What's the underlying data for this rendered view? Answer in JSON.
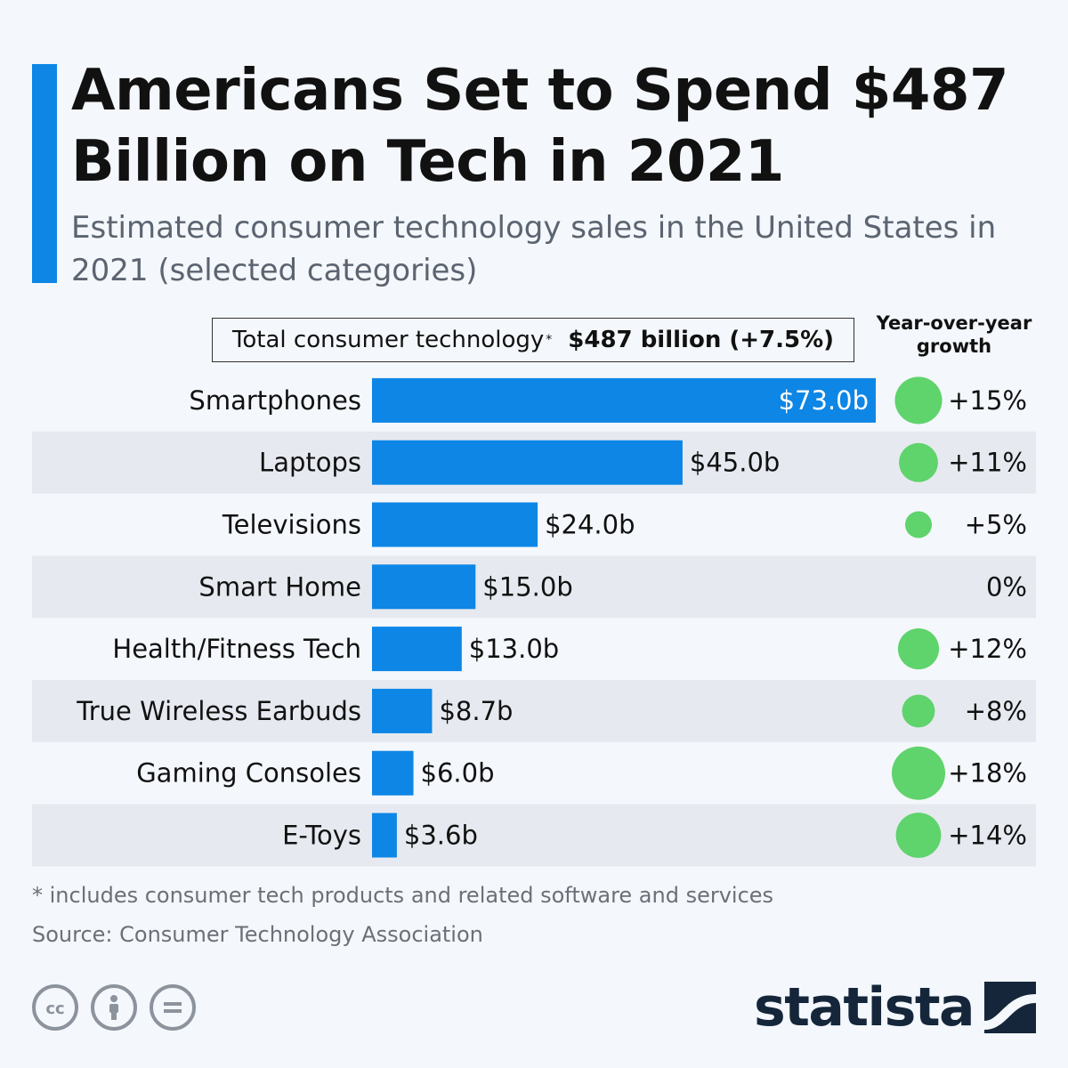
{
  "header": {
    "title": "Americans Set to Spend $487 Billion on Tech in 2021",
    "subtitle": "Estimated consumer technology sales in the United States in 2021 (selected categories)",
    "accent_color": "#0d86e6"
  },
  "total": {
    "label": "Total consumer technology",
    "marker": "*",
    "value": "$487 billion (+7.5%)"
  },
  "growth_header": "Year-over-year growth",
  "chart_data": {
    "type": "bar",
    "orientation": "horizontal",
    "title": "Americans Set to Spend $487 Billion on Tech in 2021",
    "unit": "billion USD",
    "categories": [
      "Smartphones",
      "Laptops",
      "Televisions",
      "Smart Home",
      "Health/Fitness Tech",
      "True Wireless Earbuds",
      "Gaming Consoles",
      "E-Toys"
    ],
    "values": [
      73.0,
      45.0,
      24.0,
      15.0,
      13.0,
      8.7,
      6.0,
      3.6
    ],
    "value_labels": [
      "$73.0b",
      "$45.0b",
      "$24.0b",
      "$15.0b",
      "$13.0b",
      "$8.7b",
      "$6.0b",
      "$3.6b"
    ],
    "growth_pct": [
      15,
      11,
      5,
      0,
      12,
      8,
      18,
      14
    ],
    "growth_labels": [
      "+15%",
      "+11%",
      "+5%",
      "0%",
      "+12%",
      "+8%",
      "+18%",
      "+14%"
    ],
    "xlim": [
      0,
      73
    ],
    "bar_color": "#0d86e6",
    "growth_color": "#5fd36c"
  },
  "footer": {
    "footnote": "* includes consumer tech products and related software and services",
    "source": "Source: Consumer Technology Association",
    "license_icons": [
      "cc-icon",
      "attribution-icon",
      "no-derivatives-icon"
    ],
    "brand": "statista"
  }
}
